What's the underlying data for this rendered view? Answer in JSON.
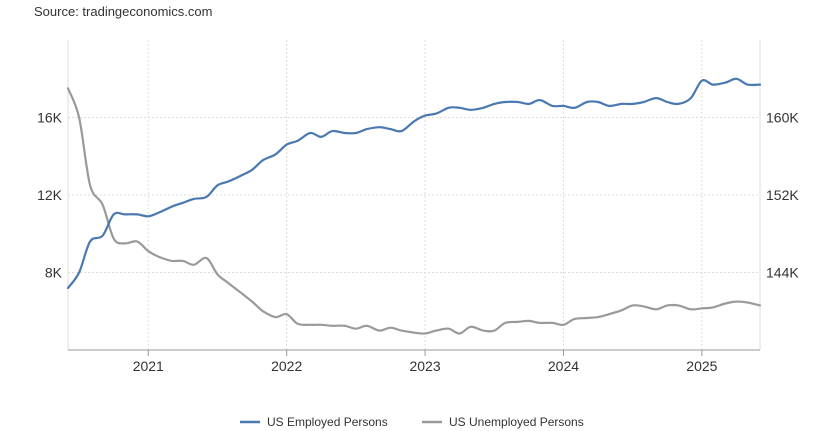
{
  "source": "Source: tradingeconomics.com",
  "chart_data": {
    "type": "line",
    "title": "",
    "x_ticks": [
      "2021",
      "2022",
      "2023",
      "2024",
      "2025"
    ],
    "x_range": [
      2020.42,
      2025.42
    ],
    "left_axis": {
      "ticks": [
        "8K",
        "12K",
        "16K"
      ],
      "tick_values": [
        8000,
        12000,
        16000
      ],
      "range": [
        4000,
        20000
      ]
    },
    "right_axis": {
      "ticks": [
        "144K",
        "152K",
        "160K"
      ],
      "tick_values": [
        144000,
        152000,
        160000
      ],
      "range": [
        136000,
        168000
      ]
    },
    "grid": true,
    "legend_position": "bottom",
    "series": [
      {
        "name": "US Employed Persons",
        "axis": "left",
        "color": "#4a78b0",
        "x": [
          2020.42,
          2020.5,
          2020.58,
          2020.67,
          2020.75,
          2020.83,
          2020.92,
          2021.0,
          2021.08,
          2021.17,
          2021.25,
          2021.33,
          2021.42,
          2021.5,
          2021.58,
          2021.67,
          2021.75,
          2021.83,
          2021.92,
          2022.0,
          2022.08,
          2022.17,
          2022.25,
          2022.33,
          2022.42,
          2022.5,
          2022.58,
          2022.67,
          2022.75,
          2022.83,
          2022.92,
          2023.0,
          2023.08,
          2023.17,
          2023.25,
          2023.33,
          2023.42,
          2023.5,
          2023.58,
          2023.67,
          2023.75,
          2023.83,
          2023.92,
          2024.0,
          2024.08,
          2024.17,
          2024.25,
          2024.33,
          2024.42,
          2024.5,
          2024.58,
          2024.67,
          2024.75,
          2024.83,
          2024.92,
          2025.0,
          2025.08,
          2025.17,
          2025.25,
          2025.33,
          2025.42
        ],
        "values": [
          7200,
          8000,
          9600,
          9900,
          11000,
          11000,
          11000,
          10900,
          11100,
          11400,
          11600,
          11800,
          11900,
          12500,
          12700,
          13000,
          13300,
          13800,
          14100,
          14600,
          14800,
          15200,
          15000,
          15300,
          15200,
          15200,
          15400,
          15500,
          15400,
          15300,
          15800,
          16100,
          16200,
          16500,
          16500,
          16400,
          16500,
          16700,
          16800,
          16800,
          16700,
          16900,
          16600,
          16600,
          16500,
          16800,
          16800,
          16600,
          16700,
          16700,
          16800,
          17000,
          16800,
          16700,
          17000,
          17900,
          17700,
          17800,
          18000,
          17700,
          17700
        ]
      },
      {
        "name": "US Unemployed Persons",
        "axis": "right",
        "color": "#9a9a9a",
        "x": [
          2020.42,
          2020.5,
          2020.58,
          2020.67,
          2020.75,
          2020.83,
          2020.92,
          2021.0,
          2021.08,
          2021.17,
          2021.25,
          2021.33,
          2021.42,
          2021.5,
          2021.58,
          2021.67,
          2021.75,
          2021.83,
          2021.92,
          2022.0,
          2022.08,
          2022.17,
          2022.25,
          2022.33,
          2022.42,
          2022.5,
          2022.58,
          2022.67,
          2022.75,
          2022.83,
          2022.92,
          2023.0,
          2023.08,
          2023.17,
          2023.25,
          2023.33,
          2023.42,
          2023.5,
          2023.58,
          2023.67,
          2023.75,
          2023.83,
          2023.92,
          2024.0,
          2024.08,
          2024.17,
          2024.25,
          2024.33,
          2024.42,
          2024.5,
          2024.58,
          2024.67,
          2024.75,
          2024.83,
          2024.92,
          2025.0,
          2025.08,
          2025.17,
          2025.25,
          2025.33,
          2025.42
        ],
        "values": [
          163000,
          160000,
          153000,
          151000,
          147500,
          147000,
          147200,
          146200,
          145600,
          145200,
          145200,
          144800,
          145500,
          143800,
          142900,
          141900,
          141000,
          140000,
          139400,
          139700,
          138700,
          138600,
          138600,
          138500,
          138500,
          138200,
          138500,
          138000,
          138300,
          138000,
          137800,
          137700,
          138000,
          138200,
          137700,
          138400,
          138000,
          138000,
          138800,
          138900,
          139000,
          138800,
          138800,
          138600,
          139200,
          139300,
          139400,
          139700,
          140100,
          140600,
          140500,
          140200,
          140600,
          140600,
          140200,
          140300,
          140400,
          140800,
          141000,
          140900,
          140600
        ]
      }
    ]
  }
}
